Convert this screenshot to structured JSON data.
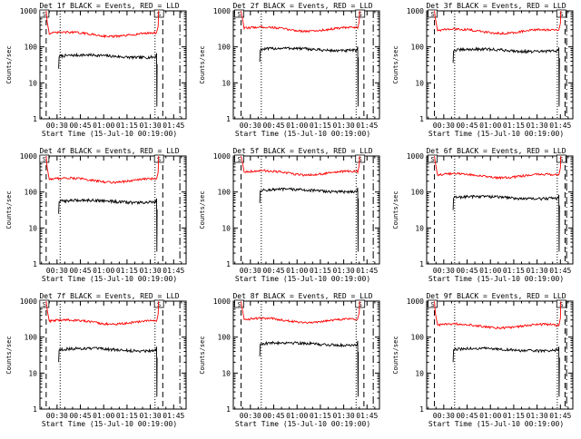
{
  "chart_data": [
    {
      "type": "line",
      "title": "Det 1f BLACK = Events, RED = LLD",
      "xlabel": "Start Time (15-Jul-10 00:19:00)",
      "ylabel": "Counts/sec",
      "x_ticks": [
        "00:30",
        "00:45",
        "01:00",
        "01:15",
        "01:30",
        "01:45"
      ],
      "y_ticks": [
        "1",
        "10",
        "100",
        "1000"
      ],
      "y_scale": "log",
      "ylim": [
        1,
        1000
      ],
      "xlim": [
        "00:19",
        "01:53"
      ],
      "markers": [
        "S",
        "S"
      ],
      "series": [
        {
          "name": "Events",
          "color": "#000000",
          "level": 55,
          "start": "00:31",
          "end": "01:34",
          "kind": "events"
        },
        {
          "name": "LLD",
          "color": "#ff0000",
          "level": 230,
          "start": "00:23",
          "end": "01:35",
          "kind": "lld"
        }
      ]
    },
    {
      "type": "line",
      "title": "Det 2f BLACK = Events, RED = LLD",
      "xlabel": "Start Time (15-Jul-10 00:19:00)",
      "ylabel": "Counts/sec",
      "x_ticks": [
        "00:30",
        "00:45",
        "01:00",
        "01:15",
        "01:30",
        "01:45"
      ],
      "y_ticks": [
        "1",
        "10",
        "100",
        "1000"
      ],
      "y_scale": "log",
      "ylim": [
        1,
        1000
      ],
      "xlim": [
        "00:19",
        "01:53"
      ],
      "markers": [
        "S",
        "S"
      ],
      "series": [
        {
          "name": "Events",
          "color": "#000000",
          "level": 85,
          "start": "00:36",
          "end": "01:39",
          "kind": "events"
        },
        {
          "name": "LLD",
          "color": "#ff0000",
          "level": 320,
          "start": "00:24",
          "end": "01:40",
          "kind": "lld"
        }
      ]
    },
    {
      "type": "line",
      "title": "Det 3f BLACK = Events, RED = LLD",
      "xlabel": "Start Time (15-Jul-10 00:19:00)",
      "ylabel": "Counts/sec",
      "x_ticks": [
        "00:30",
        "00:45",
        "01:00",
        "01:15",
        "01:30",
        "01:45"
      ],
      "y_ticks": [
        "1",
        "10",
        "100",
        "1000"
      ],
      "y_scale": "log",
      "ylim": [
        1,
        1000
      ],
      "xlim": [
        "00:19",
        "01:53"
      ],
      "markers": [
        "S",
        "S"
      ],
      "series": [
        {
          "name": "Events",
          "color": "#000000",
          "level": 80,
          "start": "00:36",
          "end": "01:44",
          "kind": "events"
        },
        {
          "name": "LLD",
          "color": "#ff0000",
          "level": 280,
          "start": "00:24",
          "end": "01:45",
          "kind": "lld"
        }
      ]
    },
    {
      "type": "line",
      "title": "Det 4f BLACK = Events, RED = LLD",
      "xlabel": "Start Time (15-Jul-10 00:19:00)",
      "ylabel": "Counts/sec",
      "x_ticks": [
        "00:30",
        "00:45",
        "01:00",
        "01:15",
        "01:30",
        "01:45"
      ],
      "y_ticks": [
        "1",
        "10",
        "100",
        "1000"
      ],
      "y_scale": "log",
      "ylim": [
        1,
        1000
      ],
      "xlim": [
        "00:19",
        "01:53"
      ],
      "markers": [
        "S",
        "S"
      ],
      "series": [
        {
          "name": "Events",
          "color": "#000000",
          "level": 55,
          "start": "00:31",
          "end": "01:34",
          "kind": "events"
        },
        {
          "name": "LLD",
          "color": "#ff0000",
          "level": 220,
          "start": "00:23",
          "end": "01:35",
          "kind": "lld"
        }
      ]
    },
    {
      "type": "line",
      "title": "Det 5f BLACK = Events, RED = LLD",
      "xlabel": "Start Time (15-Jul-10 00:19:00)",
      "ylabel": "Counts/sec",
      "x_ticks": [
        "00:30",
        "00:45",
        "01:00",
        "01:15",
        "01:30",
        "01:45"
      ],
      "y_ticks": [
        "1",
        "10",
        "100",
        "1000"
      ],
      "y_scale": "log",
      "ylim": [
        1,
        1000
      ],
      "xlim": [
        "00:19",
        "01:53"
      ],
      "markers": [
        "S",
        "S"
      ],
      "series": [
        {
          "name": "Events",
          "color": "#000000",
          "level": 110,
          "start": "00:36",
          "end": "01:39",
          "kind": "events"
        },
        {
          "name": "LLD",
          "color": "#ff0000",
          "level": 350,
          "start": "00:24",
          "end": "01:40",
          "kind": "lld"
        }
      ]
    },
    {
      "type": "line",
      "title": "Det 6f BLACK = Events, RED = LLD",
      "xlabel": "Start Time (15-Jul-10 00:19:00)",
      "ylabel": "Counts/sec",
      "x_ticks": [
        "00:30",
        "00:45",
        "01:00",
        "01:15",
        "01:30",
        "01:45"
      ],
      "y_ticks": [
        "1",
        "10",
        "100",
        "1000"
      ],
      "y_scale": "log",
      "ylim": [
        1,
        1000
      ],
      "xlim": [
        "00:19",
        "01:53"
      ],
      "markers": [
        "S",
        "S"
      ],
      "series": [
        {
          "name": "Events",
          "color": "#000000",
          "level": 70,
          "start": "00:36",
          "end": "01:44",
          "kind": "events"
        },
        {
          "name": "LLD",
          "color": "#ff0000",
          "level": 290,
          "start": "00:24",
          "end": "01:45",
          "kind": "lld"
        }
      ]
    },
    {
      "type": "line",
      "title": "Det 7f BLACK = Events, RED = LLD",
      "xlabel": "Start Time (15-Jul-10 00:19:00)",
      "ylabel": "Counts/sec",
      "x_ticks": [
        "00:30",
        "00:45",
        "01:00",
        "01:15",
        "01:30",
        "01:45"
      ],
      "y_ticks": [
        "1",
        "10",
        "100",
        "1000"
      ],
      "y_scale": "log",
      "ylim": [
        1,
        1000
      ],
      "xlim": [
        "00:19",
        "01:53"
      ],
      "markers": [
        "S",
        "S"
      ],
      "series": [
        {
          "name": "Events",
          "color": "#000000",
          "level": 45,
          "start": "00:31",
          "end": "01:34",
          "kind": "events"
        },
        {
          "name": "LLD",
          "color": "#ff0000",
          "level": 270,
          "start": "00:23",
          "end": "01:35",
          "kind": "lld"
        }
      ]
    },
    {
      "type": "line",
      "title": "Det 8f BLACK = Events, RED = LLD",
      "xlabel": "Start Time (15-Jul-10 00:19:00)",
      "ylabel": "Counts/sec",
      "x_ticks": [
        "00:30",
        "00:45",
        "01:00",
        "01:15",
        "01:30",
        "01:45"
      ],
      "y_ticks": [
        "1",
        "10",
        "100",
        "1000"
      ],
      "y_scale": "log",
      "ylim": [
        1,
        1000
      ],
      "xlim": [
        "00:19",
        "01:53"
      ],
      "markers": [
        "S",
        "S"
      ],
      "series": [
        {
          "name": "Events",
          "color": "#000000",
          "level": 65,
          "start": "00:36",
          "end": "01:39",
          "kind": "events"
        },
        {
          "name": "LLD",
          "color": "#ff0000",
          "level": 300,
          "start": "00:24",
          "end": "01:40",
          "kind": "lld"
        }
      ]
    },
    {
      "type": "line",
      "title": "Det 9f BLACK = Events, RED = LLD",
      "xlabel": "Start Time (15-Jul-10 00:19:00)",
      "ylabel": "Counts/sec",
      "x_ticks": [
        "00:30",
        "00:45",
        "01:00",
        "01:15",
        "01:30",
        "01:45"
      ],
      "y_ticks": [
        "1",
        "10",
        "100",
        "1000"
      ],
      "y_scale": "log",
      "ylim": [
        1,
        1000
      ],
      "xlim": [
        "00:19",
        "01:53"
      ],
      "markers": [
        "S",
        "S"
      ],
      "series": [
        {
          "name": "Events",
          "color": "#000000",
          "level": 45,
          "start": "00:36",
          "end": "01:44",
          "kind": "events"
        },
        {
          "name": "LLD",
          "color": "#ff0000",
          "level": 210,
          "start": "00:24",
          "end": "01:45",
          "kind": "lld"
        }
      ]
    }
  ]
}
